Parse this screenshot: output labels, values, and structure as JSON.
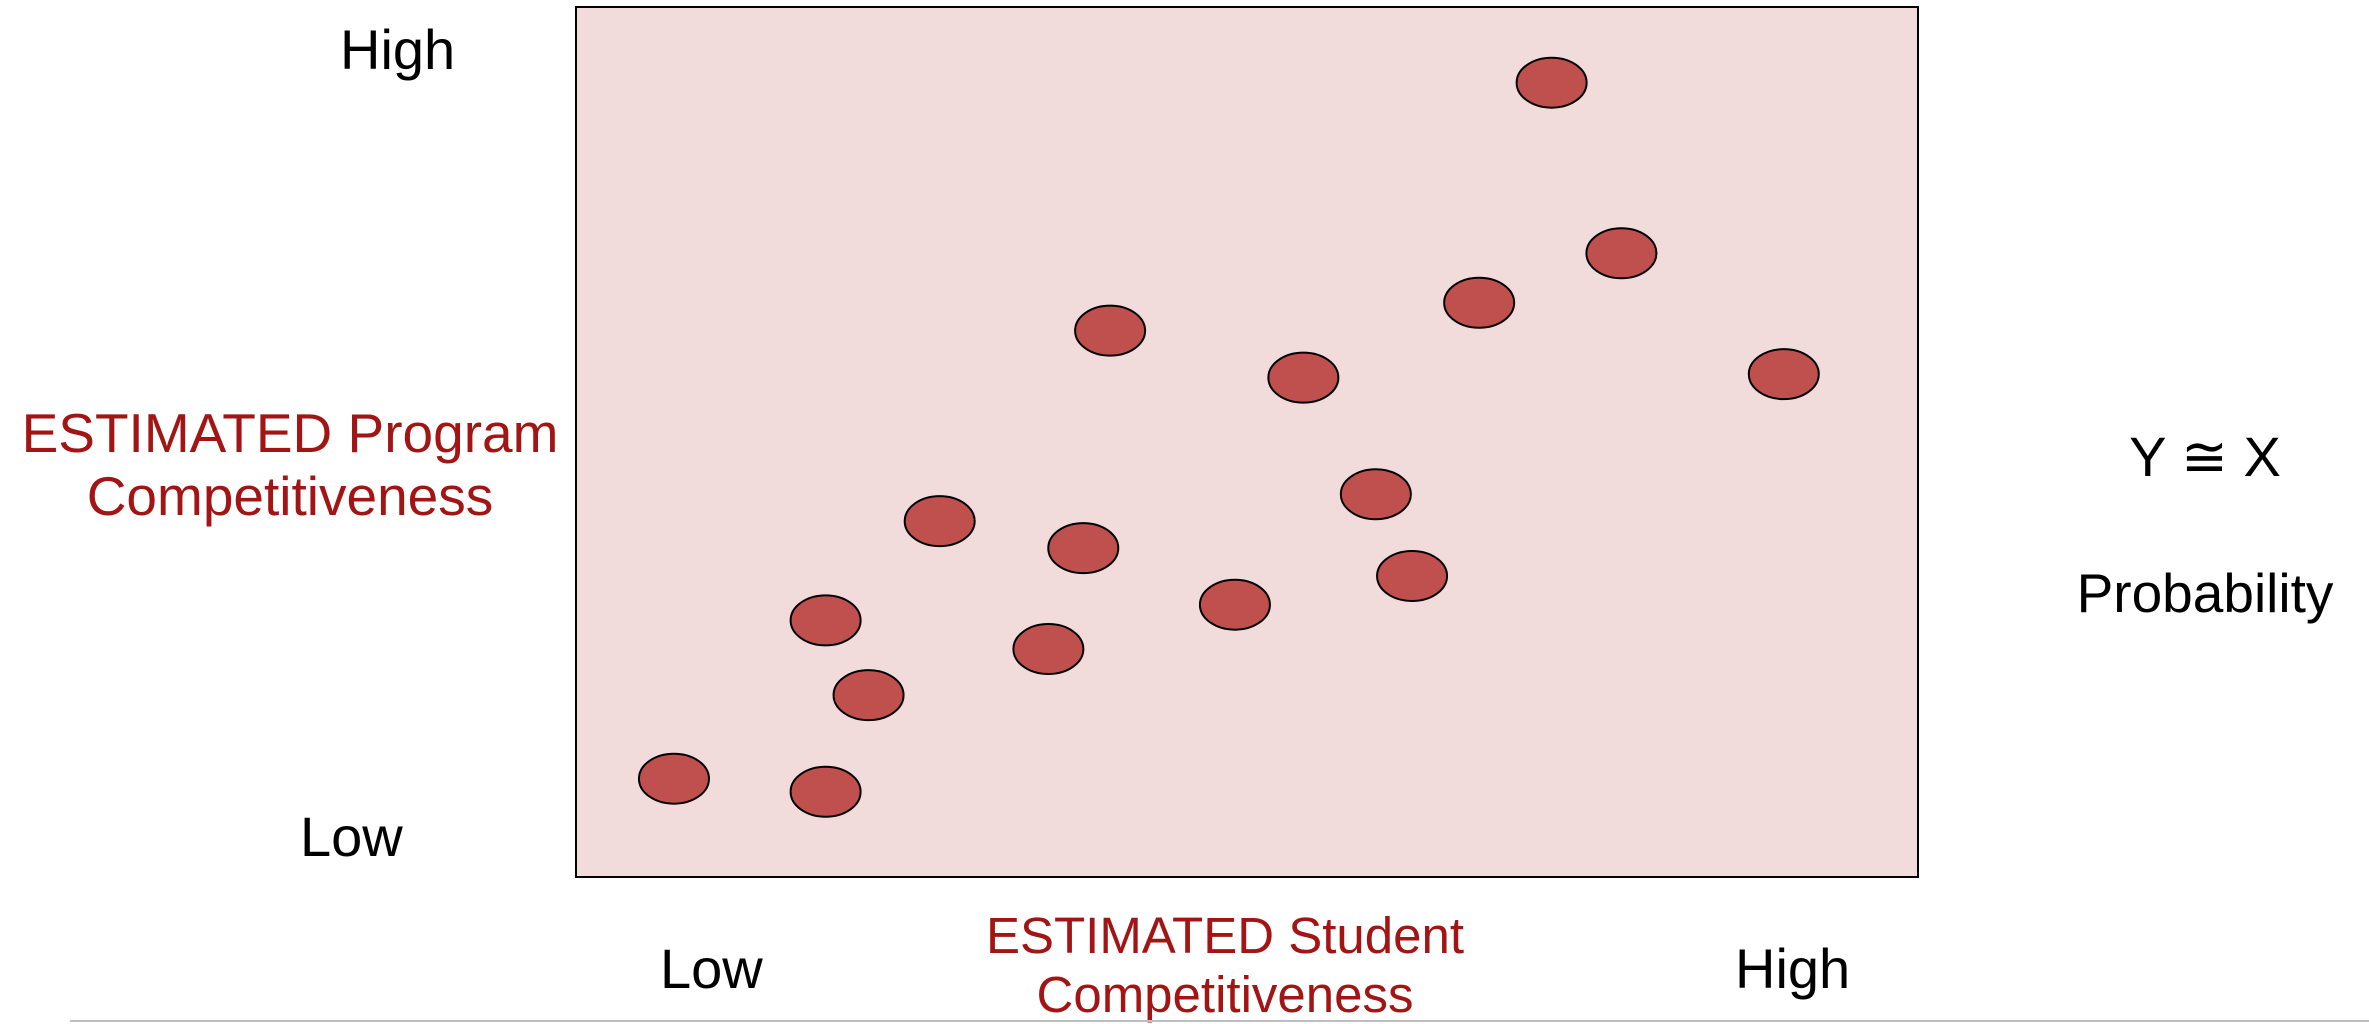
{
  "chart_data": {
    "type": "scatter",
    "title": "",
    "xlabel": "ESTIMATED Student Competitiveness",
    "ylabel_lines": [
      "ESTIMATED Program",
      "Competitiveness"
    ],
    "xlabel_lines": [
      "ESTIMATED Student",
      "Competitiveness"
    ],
    "x_tick_labels": {
      "low": "Low",
      "high": "High"
    },
    "y_tick_labels": {
      "low": "Low",
      "high": "High"
    },
    "xlim": [
      0,
      10
    ],
    "ylim": [
      0,
      10
    ],
    "grid": false,
    "legend": "none",
    "annotations": [
      "Y ≅ X",
      "Probability"
    ],
    "colors": {
      "plot_background": "#f2dcdb",
      "plot_border": "#000000",
      "point_fill": "#c0504d",
      "point_stroke": "#000000",
      "label_accent": "#a31515",
      "label_text": "#000000"
    },
    "points": [
      {
        "x": 0.73,
        "y": 1.13
      },
      {
        "x": 1.86,
        "y": 0.98
      },
      {
        "x": 2.18,
        "y": 2.09
      },
      {
        "x": 1.86,
        "y": 2.95
      },
      {
        "x": 2.71,
        "y": 4.09
      },
      {
        "x": 3.52,
        "y": 2.62
      },
      {
        "x": 3.78,
        "y": 3.78
      },
      {
        "x": 3.98,
        "y": 6.28
      },
      {
        "x": 4.91,
        "y": 3.13
      },
      {
        "x": 5.42,
        "y": 5.74
      },
      {
        "x": 5.96,
        "y": 4.4
      },
      {
        "x": 6.23,
        "y": 3.46
      },
      {
        "x": 6.73,
        "y": 6.6
      },
      {
        "x": 7.27,
        "y": 9.13
      },
      {
        "x": 7.79,
        "y": 7.17
      },
      {
        "x": 9.0,
        "y": 5.78
      }
    ]
  }
}
